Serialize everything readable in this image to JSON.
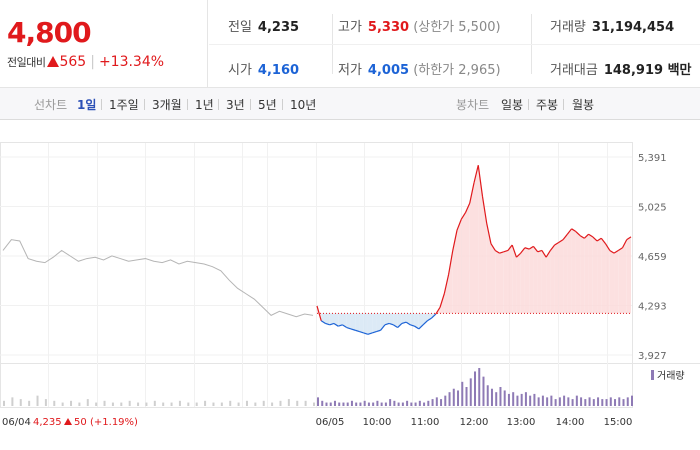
{
  "summary": {
    "price": "4,800",
    "change_label": "전일대비",
    "change_value": "565",
    "change_pct": "+13.34%",
    "prev_close_label": "전일",
    "prev_close": "4,235",
    "open_label": "시가",
    "open": "4,160",
    "high_label": "고가",
    "high": "5,330",
    "upper_limit": "(상한가 5,500)",
    "low_label": "저가",
    "low": "4,005",
    "lower_limit": "(하한가 2,965)",
    "volume_label": "거래량",
    "volume": "31,194,454",
    "value_label": "거래대금",
    "value": "148,919 백만"
  },
  "toolbar": {
    "line_label": "선차트",
    "periods": [
      "1일",
      "1주일",
      "3개월",
      "1년",
      "3년",
      "5년",
      "10년"
    ],
    "active_period": "1일",
    "candle_label": "봉차트",
    "candles": [
      "일봉",
      "주봉",
      "월봉"
    ]
  },
  "colors": {
    "up": "#e0191c",
    "down": "#1c63d6",
    "prev_day_line": "#b5b5b5",
    "up_fill": "#fbdada",
    "down_fill": "#d6e6f5",
    "volume": "#8e7ab5"
  },
  "chart_data": {
    "type": "line",
    "y_ticks": [
      "5,391",
      "5,025",
      "4,659",
      "4,293",
      "3,927"
    ],
    "ylim": [
      3927,
      5391
    ],
    "baseline": 4235,
    "x_ticks": [
      "06/05",
      "10:00",
      "11:00",
      "12:00",
      "13:00",
      "14:00",
      "15:00"
    ],
    "prev_day": {
      "date_label": "06/04",
      "close_label": "4,235",
      "change_label": "50",
      "pct_label": "(+1.19%)",
      "values": [
        4700,
        4780,
        4770,
        4640,
        4620,
        4610,
        4650,
        4700,
        4660,
        4620,
        4640,
        4650,
        4630,
        4660,
        4640,
        4620,
        4630,
        4640,
        4620,
        4610,
        4630,
        4600,
        4620,
        4610,
        4600,
        4580,
        4550,
        4480,
        4420,
        4380,
        4340,
        4280,
        4220,
        4250,
        4230,
        4210,
        4230,
        4220
      ]
    },
    "today": {
      "values": [
        4290,
        4180,
        4160,
        4150,
        4160,
        4140,
        4150,
        4130,
        4120,
        4110,
        4100,
        4090,
        4080,
        4090,
        4100,
        4110,
        4150,
        4160,
        4150,
        4130,
        4160,
        4170,
        4150,
        4140,
        4120,
        4150,
        4180,
        4200,
        4230,
        4280,
        4380,
        4520,
        4700,
        4850,
        4930,
        4980,
        5050,
        5200,
        5330,
        5100,
        4900,
        4750,
        4700,
        4680,
        4690,
        4700,
        4740,
        4650,
        4680,
        4720,
        4710,
        4730,
        4690,
        4700,
        4650,
        4700,
        4740,
        4760,
        4780,
        4820,
        4860,
        4840,
        4810,
        4790,
        4820,
        4800,
        4770,
        4790,
        4750,
        4700,
        4680,
        4700,
        4720,
        4780,
        4800
      ]
    },
    "volume_label": "거래량",
    "volume_prev": [
      3,
      5,
      4,
      3,
      6,
      4,
      3,
      2,
      3,
      2,
      4,
      2,
      3,
      2,
      2,
      3,
      2,
      2,
      3,
      2,
      2,
      3,
      2,
      2,
      3,
      2,
      2,
      3,
      2,
      3,
      2,
      3,
      2,
      3,
      4,
      3,
      3,
      2
    ],
    "volume_today": [
      5,
      3,
      2,
      2,
      3,
      2,
      2,
      2,
      3,
      2,
      2,
      3,
      2,
      2,
      3,
      2,
      2,
      4,
      3,
      2,
      2,
      3,
      2,
      2,
      3,
      2,
      3,
      4,
      5,
      4,
      6,
      8,
      10,
      9,
      14,
      11,
      16,
      20,
      22,
      17,
      12,
      10,
      8,
      11,
      9,
      7,
      8,
      6,
      7,
      8,
      6,
      7,
      5,
      6,
      5,
      6,
      4,
      5,
      6,
      5,
      4,
      6,
      5,
      4,
      5,
      4,
      5,
      4,
      4,
      5,
      4,
      5,
      4,
      5,
      6
    ]
  }
}
